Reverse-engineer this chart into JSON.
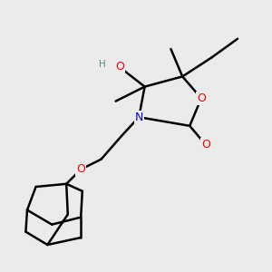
{
  "bg_color": "#ebebeb",
  "atom_colors": {
    "O": "#ff0000",
    "N": "#0000cd",
    "C": "#000000",
    "H_label": "#4a9090"
  },
  "bond_color": "#000000",
  "bond_width": 1.8
}
